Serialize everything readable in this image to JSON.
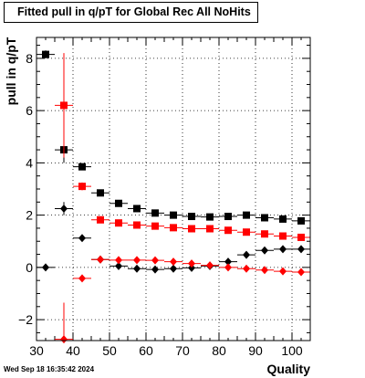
{
  "chart_data": {
    "type": "scatter",
    "title": "Fitted pull in q/pT for Global Rec All NoHits",
    "xlabel": "Quality",
    "ylabel": "pull in q/pT",
    "xlim": [
      30,
      105
    ],
    "ylim": [
      -2.8,
      8.8
    ],
    "x_ticks": [
      30,
      40,
      50,
      60,
      70,
      80,
      90,
      100
    ],
    "y_ticks": [
      -2,
      0,
      2,
      4,
      6,
      8
    ],
    "grid": true,
    "series": [
      {
        "marker": "square",
        "color": "#000000",
        "x": [
          32.5,
          37.5,
          42.5,
          47.5,
          52.5,
          57.5,
          62.5,
          67.5,
          72.5,
          77.5,
          82.5,
          87.5,
          92.5,
          97.5,
          102.5
        ],
        "y": [
          8.15,
          4.5,
          3.85,
          2.85,
          2.45,
          2.25,
          2.08,
          2.0,
          1.95,
          1.93,
          1.95,
          2.0,
          1.9,
          1.85,
          1.78
        ],
        "yerr": [
          0.15,
          0.5,
          0.08,
          0.05,
          0.04,
          0.04,
          0.03,
          0.03,
          0.03,
          0.03,
          0.03,
          0.03,
          0.03,
          0.03,
          0.03
        ]
      },
      {
        "marker": "square",
        "color": "#ff0000",
        "x": [
          37.5,
          42.5,
          47.5,
          52.5,
          57.5,
          62.5,
          67.5,
          72.5,
          77.5,
          82.5,
          87.5,
          92.5,
          97.5,
          102.5
        ],
        "y": [
          6.2,
          3.1,
          1.82,
          1.7,
          1.62,
          1.58,
          1.52,
          1.48,
          1.48,
          1.42,
          1.35,
          1.28,
          1.2,
          1.15
        ],
        "yerr": [
          2.0,
          0.15,
          0.06,
          0.04,
          0.04,
          0.03,
          0.03,
          0.03,
          0.03,
          0.03,
          0.03,
          0.03,
          0.03,
          0.03
        ]
      },
      {
        "marker": "diamond",
        "color": "#000000",
        "x": [
          32.5,
          37.5,
          42.5,
          47.5,
          52.5,
          57.5,
          62.5,
          67.5,
          72.5,
          77.5,
          82.5,
          87.5,
          92.5,
          97.5,
          102.5
        ],
        "y": [
          0.0,
          2.25,
          1.12,
          0.3,
          0.05,
          -0.05,
          -0.08,
          -0.05,
          -0.02,
          0.05,
          0.22,
          0.48,
          0.65,
          0.7,
          0.7
        ],
        "yerr": [
          0.05,
          0.25,
          0.08,
          0.05,
          0.04,
          0.03,
          0.03,
          0.03,
          0.03,
          0.03,
          0.03,
          0.03,
          0.03,
          0.03,
          0.03
        ]
      },
      {
        "marker": "diamond",
        "color": "#ff0000",
        "x": [
          37.5,
          42.5,
          47.5,
          52.5,
          57.5,
          62.5,
          67.5,
          72.5,
          77.5,
          82.5,
          87.5,
          92.5,
          97.5,
          102.5
        ],
        "y": [
          -2.75,
          -0.42,
          0.3,
          0.28,
          0.28,
          0.27,
          0.22,
          0.15,
          0.08,
          0.0,
          -0.05,
          -0.1,
          -0.15,
          -0.18
        ],
        "yerr": [
          1.4,
          0.1,
          0.05,
          0.04,
          0.04,
          0.03,
          0.03,
          0.03,
          0.03,
          0.03,
          0.03,
          0.03,
          0.03,
          0.03
        ]
      }
    ]
  },
  "timestamp": "Wed Sep 18 16:35:42 2024"
}
